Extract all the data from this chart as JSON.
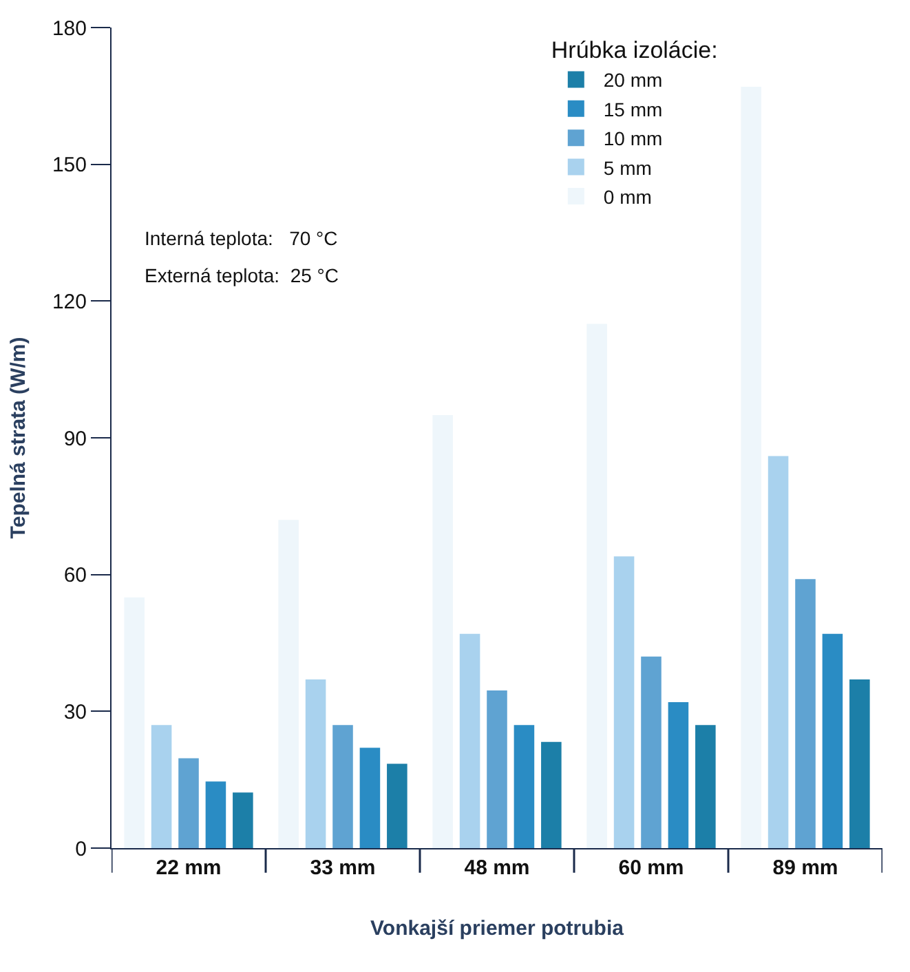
{
  "chart_data": {
    "type": "bar",
    "categories": [
      "22 mm",
      "33 mm",
      "48 mm",
      "60 mm",
      "89 mm"
    ],
    "xlabel": "Vonkajší priemer potrubia",
    "ylabel": "Tepelná strata (W/m)",
    "legend_title": "Hrúbka izolácie:",
    "series": [
      {
        "name": "0 mm",
        "color": "#eef6fb",
        "values": [
          55,
          72,
          95,
          115,
          167
        ]
      },
      {
        "name": "5 mm",
        "color": "#a9d2ee",
        "values": [
          27,
          37,
          47,
          64,
          86
        ]
      },
      {
        "name": "10 mm",
        "color": "#5fa3d2",
        "values": [
          19.7,
          27,
          34.6,
          42,
          59
        ]
      },
      {
        "name": "15 mm",
        "color": "#2a8cc4",
        "values": [
          14.6,
          22,
          27,
          32,
          47
        ]
      },
      {
        "name": "20 mm",
        "color": "#1c7fa8",
        "values": [
          12.2,
          18.5,
          23.3,
          27,
          37
        ]
      }
    ],
    "annotations": [
      "Interná teplota:   70 °C",
      "Externá teplota:  25 °C"
    ],
    "ylim": [
      0,
      180
    ],
    "yticks": [
      0,
      30,
      60,
      90,
      120,
      150,
      180
    ],
    "legend": "top right"
  }
}
